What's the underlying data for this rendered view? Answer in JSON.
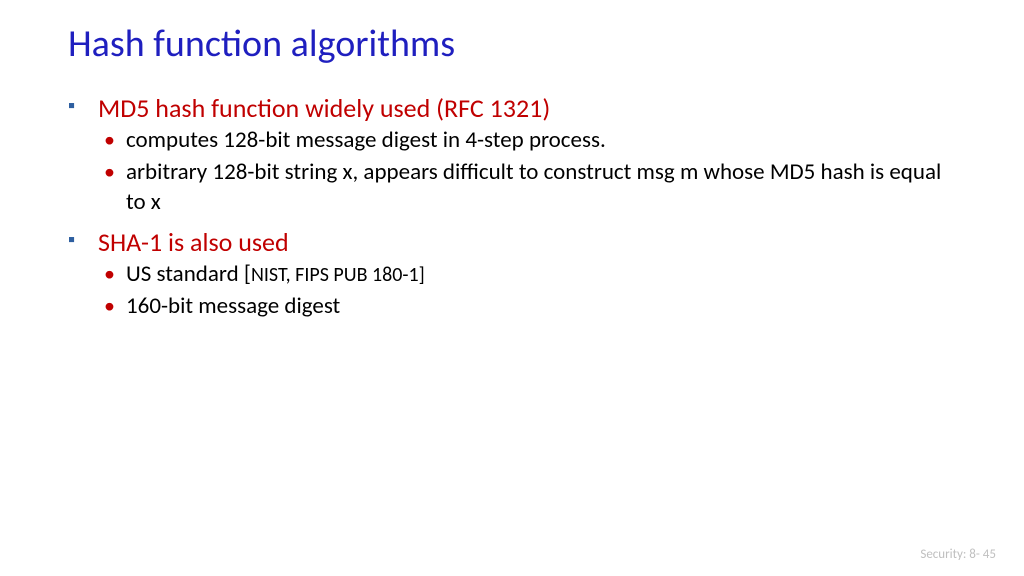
{
  "colors": {
    "title": "#1f1fbf",
    "level1_text": "#c00000",
    "level1_bullet": "#2e5fa0",
    "level2_text": "#000000",
    "level2_bullet": "#c00000",
    "footer": "#bfbfbf",
    "background": "#ffffff"
  },
  "typography": {
    "title_fontsize": 38,
    "l1_fontsize": 26,
    "l2_fontsize": 23,
    "small_fontsize": 20,
    "footer_fontsize": 13,
    "family": "Calibri"
  },
  "title": "Hash function algorithms",
  "bullets": {
    "b1": "MD5 hash function widely used (RFC 1321)",
    "b1_1": "computes 128-bit message digest in 4-step process.",
    "b1_2": "arbitrary 128-bit string x, appears difficult to construct msg m whose MD5 hash is equal to x",
    "b2": "SHA-1 is also used",
    "b2_1a": "US standard [",
    "b2_1b": "NIST, FIPS PUB 180-1]",
    "b2_2": "160-bit message digest"
  },
  "footer": "Security: 8- 45"
}
